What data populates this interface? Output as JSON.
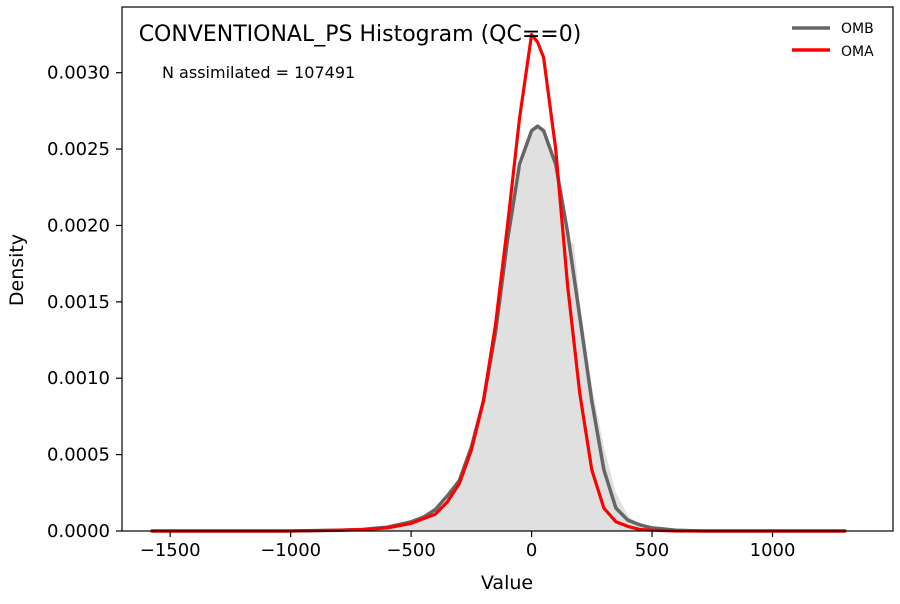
{
  "chart_data": {
    "type": "area",
    "title": "CONVENTIONAL_PS Histogram (QC==0)",
    "annotation": "N assimilated = 107491",
    "xlabel": "Value",
    "ylabel": "Density",
    "xlim": [
      -1700,
      1500
    ],
    "ylim": [
      0,
      0.00343
    ],
    "x_ticks": [
      -1500,
      -1000,
      -500,
      0,
      500,
      1000
    ],
    "x_tick_labels": [
      "−1500",
      "−1000",
      "−500",
      "0",
      "500",
      "1000"
    ],
    "y_ticks": [
      0,
      0.0005,
      0.001,
      0.0015,
      0.002,
      0.0025,
      0.003
    ],
    "y_tick_labels": [
      "0.0000",
      "0.0005",
      "0.0010",
      "0.0015",
      "0.0020",
      "0.0025",
      "0.0030"
    ],
    "grid": false,
    "legend_position": "top-right",
    "histogram": {
      "color": "#e0e0e0",
      "x": [
        -1575,
        -1400,
        -1200,
        -1000,
        -800,
        -700,
        -600,
        -500,
        -450,
        -400,
        -350,
        -300,
        -250,
        -200,
        -150,
        -100,
        -50,
        0,
        25,
        50,
        100,
        150,
        175,
        200,
        250,
        300,
        350,
        400,
        450,
        500,
        600,
        700,
        800,
        1000,
        1200,
        1300
      ],
      "y": [
        0.0,
        0.0,
        0.0,
        0.0,
        5e-06,
        1e-05,
        2e-05,
        5e-05,
        8e-05,
        0.00012,
        0.0002,
        0.0003,
        0.0005,
        0.0008,
        0.00125,
        0.0018,
        0.00235,
        0.0026,
        0.00265,
        0.00262,
        0.00235,
        0.0019,
        0.00188,
        0.0015,
        0.00095,
        0.00055,
        0.00025,
        0.0001,
        4e-05,
        2e-05,
        5e-06,
        0.0,
        0.0,
        0.0,
        0.0,
        0.0
      ]
    },
    "series": [
      {
        "name": "OMB",
        "color": "#666666",
        "x": [
          -1575,
          -1400,
          -1200,
          -1000,
          -800,
          -700,
          -600,
          -500,
          -450,
          -400,
          -350,
          -300,
          -250,
          -200,
          -150,
          -100,
          -50,
          0,
          25,
          50,
          100,
          150,
          200,
          250,
          300,
          350,
          400,
          450,
          500,
          600,
          700,
          800,
          1000,
          1200,
          1300
        ],
        "y": [
          0.0,
          0.0,
          0.0,
          0.0,
          5e-06,
          1e-05,
          2.5e-05,
          6e-05,
          9e-05,
          0.00014,
          0.00023,
          0.00033,
          0.00055,
          0.00085,
          0.0013,
          0.0019,
          0.0024,
          0.00262,
          0.00265,
          0.00262,
          0.0024,
          0.00195,
          0.0014,
          0.00085,
          0.0004,
          0.00015,
          7e-05,
          4e-05,
          2e-05,
          5e-06,
          0.0,
          0.0,
          0.0,
          0.0,
          0.0
        ]
      },
      {
        "name": "OMA",
        "color": "#ff0000",
        "x": [
          -1575,
          -1400,
          -1200,
          -1000,
          -800,
          -700,
          -600,
          -500,
          -450,
          -400,
          -350,
          -300,
          -250,
          -200,
          -150,
          -100,
          -50,
          0,
          25,
          50,
          100,
          150,
          200,
          250,
          300,
          350,
          400,
          450,
          500,
          600,
          700,
          800,
          1000,
          1200,
          1300
        ],
        "y": [
          0.0,
          0.0,
          0.0,
          0.0,
          5e-06,
          1e-05,
          2e-05,
          5e-05,
          8e-05,
          0.00011,
          0.00019,
          0.00031,
          0.00053,
          0.00085,
          0.00135,
          0.002,
          0.0027,
          0.00325,
          0.0032,
          0.0031,
          0.0025,
          0.0016,
          0.0009,
          0.0004,
          0.00015,
          6e-05,
          3e-05,
          1e-05,
          5e-06,
          0.0,
          0.0,
          0.0,
          0.0,
          0.0,
          0.0
        ]
      }
    ]
  }
}
